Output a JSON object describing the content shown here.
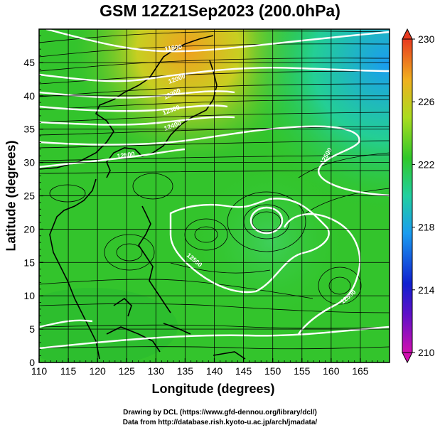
{
  "title": "GSM 12Z21Sep2023 (200.0hPa)",
  "xlabel": "Longitude (degrees)",
  "ylabel": "Latitude (degrees)",
  "x_ticks": [
    "110",
    "115",
    "120",
    "125",
    "130",
    "135",
    "140",
    "145",
    "150",
    "155",
    "160",
    "165"
  ],
  "y_ticks": [
    "0",
    "5",
    "10",
    "15",
    "20",
    "25",
    "30",
    "35",
    "40",
    "45"
  ],
  "colorbar": {
    "labels": [
      "230",
      "226",
      "222",
      "218",
      "214",
      "210"
    ],
    "min": 210,
    "max": 230,
    "colors": [
      "#d010b0",
      "#1020d0",
      "#1a9cf0",
      "#22d0a0",
      "#30c82a",
      "#aadc20",
      "#f0b020",
      "#e83a20"
    ]
  },
  "contour_labels": [
    "11800",
    "12000",
    "12200",
    "12300",
    "12400",
    "12500",
    "12500",
    "12500",
    "12500"
  ],
  "credits": {
    "line1": "Drawing by DCL (https://www.gfd-dennou.org/library/dcl/)",
    "line2": "Data from http://database.rish.kyoto-u.ac.jp/arch/jmadata/"
  }
}
